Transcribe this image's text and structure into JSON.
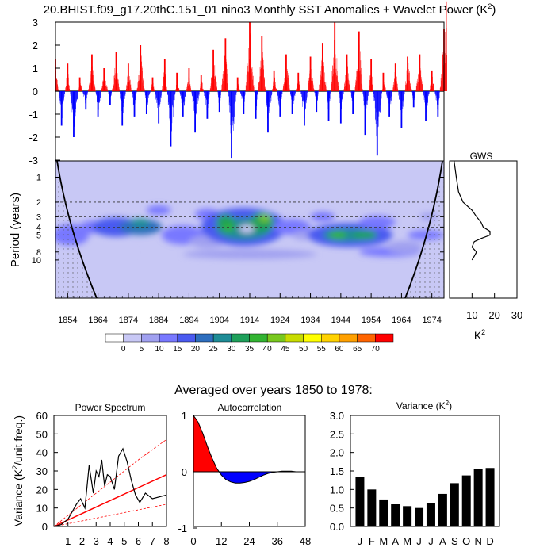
{
  "page": {
    "main_title": "20.BHIST.f09_g17.20thC.151_01 nino3 Monthly SST Anomalies + Wavelet Power (K",
    "main_title_sup": "2",
    "main_title_end": ")",
    "averaged_title": "Averaged over years 1850 to 1978:"
  },
  "colors": {
    "positive": "#ff0000",
    "negative": "#0000ff",
    "palette": [
      "#ffffff",
      "#c8c8f5",
      "#a0a0f0",
      "#7878ff",
      "#4a5af0",
      "#2d6ebe",
      "#1e8c96",
      "#1ea05a",
      "#32b432",
      "#78c81e",
      "#c8dc00",
      "#ffff00",
      "#ffd200",
      "#ffa000",
      "#ff6400",
      "#ff0000"
    ]
  },
  "chart_data": [
    {
      "type": "bar",
      "id": "sst-anomaly",
      "title": "",
      "xlabel": "",
      "ylabel": "",
      "x_range": [
        1850,
        1978
      ],
      "ylim": [
        -3,
        3
      ],
      "yticks": [
        "3",
        "2",
        "1",
        "0",
        "-1",
        "-2",
        "-3"
      ],
      "series": [
        {
          "x": [
            1850,
            1852,
            1854,
            1856,
            1858,
            1860,
            1862,
            1864,
            1866,
            1868,
            1870,
            1872,
            1874,
            1876,
            1878,
            1880,
            1882,
            1884,
            1886,
            1888,
            1890,
            1892,
            1894,
            1896,
            1898,
            1900,
            1902,
            1904,
            1906,
            1908,
            1910,
            1912,
            1914,
            1916,
            1918,
            1920,
            1922,
            1924,
            1926,
            1928,
            1930,
            1932,
            1934,
            1936,
            1938,
            1940,
            1942,
            1944,
            1946,
            1948,
            1950,
            1952,
            1954,
            1956,
            1958,
            1960,
            1962,
            1964,
            1966,
            1968,
            1970,
            1972,
            1974,
            1976,
            1978
          ],
          "values": [
            1.4,
            -1.5,
            1.2,
            -2.0,
            0.6,
            -0.8,
            1.6,
            -1.1,
            1.0,
            -0.6,
            1.7,
            -1.5,
            1.2,
            -1.1,
            2.0,
            -1.0,
            0.6,
            -1.4,
            1.4,
            -2.4,
            0.8,
            -1.1,
            1.0,
            -1.8,
            0.7,
            -1.2,
            1.8,
            -0.9,
            2.3,
            -2.9,
            0.6,
            -1.0,
            3.0,
            -1.2,
            2.4,
            -1.8,
            0.9,
            -1.1,
            1.6,
            -1.0,
            0.8,
            -1.5,
            1.5,
            -0.9,
            2.1,
            -1.3,
            3.0,
            -1.4,
            1.6,
            -1.0,
            2.6,
            -1.9,
            1.4,
            -2.8,
            0.8,
            -1.1,
            1.2,
            -1.6,
            1.5,
            -0.7,
            1.6,
            -1.3,
            0.9,
            -1.1,
            2.7
          ]
        }
      ]
    },
    {
      "type": "heatmap",
      "id": "wavelet-power",
      "title": "",
      "ylabel": "Period (years)",
      "xticks": [
        "1854",
        "1864",
        "1874",
        "1884",
        "1894",
        "1904",
        "1914",
        "1924",
        "1934",
        "1944",
        "1954",
        "1964",
        "1974"
      ],
      "yticks": [
        "1",
        "2",
        "3",
        "4",
        "5",
        "8",
        "10"
      ],
      "colorbar_labels": [
        "0",
        "5",
        "10",
        "15",
        "20",
        "25",
        "30",
        "35",
        "40",
        "45",
        "50",
        "55",
        "60",
        "65",
        "70"
      ],
      "dashed_periods": [
        2,
        3,
        4
      ]
    },
    {
      "type": "line",
      "id": "global-wavelet-spectrum",
      "title": "GWS",
      "xlabel": "K",
      "xlabel_sup": "2",
      "xticks": [
        "10",
        "20",
        "30"
      ],
      "xlim": [
        0,
        30
      ],
      "period": [
        0.5,
        1,
        1.5,
        2,
        2.5,
        3,
        3.5,
        4,
        4.5,
        5,
        5.5,
        6,
        7,
        8,
        9,
        10
      ],
      "values": [
        2,
        3,
        4,
        6,
        10,
        12,
        14,
        15,
        18,
        18,
        14,
        11,
        10,
        12,
        11,
        10
      ]
    },
    {
      "type": "line",
      "id": "power-spectrum",
      "title": "Power Spectrum",
      "ylabel": "Variance (K",
      "ylabel_sup": "2",
      "ylabel_end": "/unit freq.)",
      "xlim": [
        0,
        8
      ],
      "ylim": [
        0,
        60
      ],
      "xticks": [
        "1",
        "2",
        "3",
        "4",
        "5",
        "6",
        "7",
        "8"
      ],
      "yticks": [
        "60",
        "50",
        "40",
        "30",
        "20",
        "10",
        "0"
      ],
      "series": [
        {
          "name": "",
          "x": [
            0,
            0.5,
            1,
            1.3,
            1.6,
            1.9,
            2.2,
            2.5,
            2.8,
            3.0,
            3.2,
            3.4,
            3.6,
            3.8,
            4.0,
            4.3,
            4.6,
            4.9,
            5.2,
            5.5,
            5.8,
            6.1,
            6.5,
            7.0,
            7.5,
            8.0
          ],
          "values": [
            0,
            1,
            4,
            8,
            12,
            15,
            10,
            33,
            18,
            30,
            27,
            36,
            22,
            28,
            27,
            20,
            38,
            42,
            35,
            25,
            17,
            13,
            18,
            15,
            16,
            17
          ]
        },
        {
          "name": "",
          "x": [
            0,
            2,
            4,
            6,
            8
          ],
          "values": [
            0,
            7,
            14,
            21,
            28
          ]
        },
        {
          "name": "",
          "x": [
            0,
            2,
            4,
            6,
            8
          ],
          "values": [
            0,
            12,
            24,
            36,
            47
          ]
        },
        {
          "name": "",
          "x": [
            0,
            2,
            4,
            6,
            8
          ],
          "values": [
            0,
            3,
            6,
            9,
            12
          ]
        }
      ]
    },
    {
      "type": "area",
      "id": "autocorrelation",
      "title": "Autocorrelation",
      "xlim": [
        0,
        48
      ],
      "ylim": [
        -1,
        1
      ],
      "xticks": [
        "0",
        "12",
        "24",
        "36",
        "48"
      ],
      "yticks": [
        "1",
        "0",
        "-1"
      ],
      "x": [
        0,
        2,
        4,
        6,
        8,
        10,
        12,
        14,
        16,
        18,
        20,
        22,
        24,
        26,
        28,
        30,
        32,
        34,
        36,
        38,
        40,
        42,
        44,
        46,
        48
      ],
      "values": [
        1.0,
        0.88,
        0.68,
        0.45,
        0.24,
        0.06,
        -0.06,
        -0.14,
        -0.18,
        -0.2,
        -0.2,
        -0.19,
        -0.17,
        -0.14,
        -0.1,
        -0.06,
        -0.03,
        -0.01,
        0.0,
        0.01,
        0.01,
        0.01,
        0.0,
        0.0,
        0.0
      ]
    },
    {
      "type": "bar",
      "id": "monthly-variance",
      "title": "Variance (K",
      "title_sup": "2",
      "title_end": ")",
      "categories": [
        "J",
        "F",
        "M",
        "A",
        "M",
        "J",
        "J",
        "A",
        "S",
        "O",
        "N",
        "D"
      ],
      "values": [
        1.33,
        1.0,
        0.73,
        0.6,
        0.55,
        0.5,
        0.63,
        0.88,
        1.17,
        1.38,
        1.55,
        1.58
      ],
      "ylim": [
        0,
        3
      ],
      "yticks": [
        "3.0",
        "2.5",
        "2.0",
        "1.5",
        "1.0",
        "0.5",
        "0.0"
      ]
    }
  ]
}
